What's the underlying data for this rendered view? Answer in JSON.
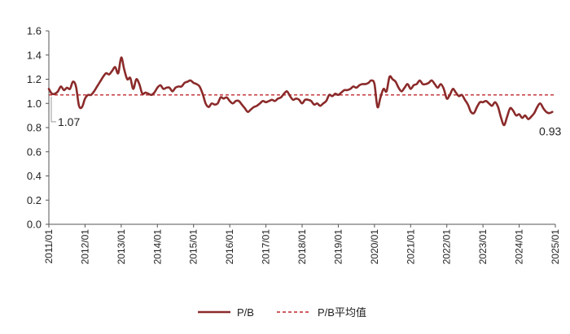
{
  "chart_data": {
    "type": "line",
    "title": "",
    "xlabel": "",
    "ylabel": "",
    "ylim": [
      0.0,
      1.6
    ],
    "y_ticks": [
      "0.0",
      "0.2",
      "0.4",
      "0.6",
      "0.8",
      "1.0",
      "1.2",
      "1.4",
      "1.6"
    ],
    "x_ticks": [
      "2011/01",
      "2012/01",
      "2013/01",
      "2014/01",
      "2015/01",
      "2016/01",
      "2017/01",
      "2018/01",
      "2019/01",
      "2020/01",
      "2021/01",
      "2022/01",
      "2023/01",
      "2024/01",
      "2025/01"
    ],
    "grid": false,
    "legend_position": "bottom",
    "series": [
      {
        "name": "P/B",
        "color": "#8B2A2A",
        "style": "solid",
        "points": [
          [
            "2011/01",
            1.12
          ],
          [
            "2011/02",
            1.08
          ],
          [
            "2011/03",
            1.08
          ],
          [
            "2011/04",
            1.1
          ],
          [
            "2011/05",
            1.14
          ],
          [
            "2011/06",
            1.11
          ],
          [
            "2011/07",
            1.13
          ],
          [
            "2011/08",
            1.12
          ],
          [
            "2011/09",
            1.18
          ],
          [
            "2011/10",
            1.14
          ],
          [
            "2011/11",
            0.98
          ],
          [
            "2011/12",
            0.97
          ],
          [
            "2012/01",
            1.04
          ],
          [
            "2012/02",
            1.07
          ],
          [
            "2012/03",
            1.07
          ],
          [
            "2012/04",
            1.1
          ],
          [
            "2012/05",
            1.14
          ],
          [
            "2012/06",
            1.18
          ],
          [
            "2012/07",
            1.22
          ],
          [
            "2012/08",
            1.25
          ],
          [
            "2012/09",
            1.24
          ],
          [
            "2012/10",
            1.27
          ],
          [
            "2012/11",
            1.3
          ],
          [
            "2012/12",
            1.25
          ],
          [
            "2013/01",
            1.38
          ],
          [
            "2013/02",
            1.28
          ],
          [
            "2013/03",
            1.2
          ],
          [
            "2013/04",
            1.21
          ],
          [
            "2013/05",
            1.12
          ],
          [
            "2013/06",
            1.2
          ],
          [
            "2013/07",
            1.16
          ],
          [
            "2013/08",
            1.08
          ],
          [
            "2013/09",
            1.09
          ],
          [
            "2013/10",
            1.08
          ],
          [
            "2013/11",
            1.07
          ],
          [
            "2013/12",
            1.09
          ],
          [
            "2014/01",
            1.13
          ],
          [
            "2014/02",
            1.15
          ],
          [
            "2014/03",
            1.12
          ],
          [
            "2014/04",
            1.13
          ],
          [
            "2014/05",
            1.13
          ],
          [
            "2014/06",
            1.1
          ],
          [
            "2014/07",
            1.13
          ],
          [
            "2014/08",
            1.14
          ],
          [
            "2014/09",
            1.14
          ],
          [
            "2014/10",
            1.17
          ],
          [
            "2014/11",
            1.18
          ],
          [
            "2014/12",
            1.19
          ],
          [
            "2015/01",
            1.17
          ],
          [
            "2015/02",
            1.16
          ],
          [
            "2015/03",
            1.14
          ],
          [
            "2015/04",
            1.08
          ],
          [
            "2015/05",
            1.0
          ],
          [
            "2015/06",
            0.97
          ],
          [
            "2015/07",
            1.0
          ],
          [
            "2015/08",
            0.99
          ],
          [
            "2015/09",
            1.0
          ],
          [
            "2015/10",
            1.05
          ],
          [
            "2015/11",
            1.04
          ],
          [
            "2015/12",
            1.05
          ],
          [
            "2016/01",
            1.02
          ],
          [
            "2016/02",
            1.0
          ],
          [
            "2016/03",
            1.02
          ],
          [
            "2016/04",
            1.02
          ],
          [
            "2016/05",
            0.99
          ],
          [
            "2016/06",
            0.96
          ],
          [
            "2016/07",
            0.93
          ],
          [
            "2016/08",
            0.95
          ],
          [
            "2016/09",
            0.97
          ],
          [
            "2016/10",
            0.98
          ],
          [
            "2016/11",
            1.0
          ],
          [
            "2016/12",
            1.02
          ],
          [
            "2017/01",
            1.01
          ],
          [
            "2017/02",
            1.02
          ],
          [
            "2017/03",
            1.03
          ],
          [
            "2017/04",
            1.02
          ],
          [
            "2017/05",
            1.04
          ],
          [
            "2017/06",
            1.05
          ],
          [
            "2017/07",
            1.08
          ],
          [
            "2017/08",
            1.1
          ],
          [
            "2017/09",
            1.06
          ],
          [
            "2017/10",
            1.03
          ],
          [
            "2017/11",
            1.04
          ],
          [
            "2017/12",
            1.03
          ],
          [
            "2018/01",
            1.0
          ],
          [
            "2018/02",
            1.03
          ],
          [
            "2018/03",
            1.03
          ],
          [
            "2018/04",
            1.02
          ],
          [
            "2018/05",
            0.99
          ],
          [
            "2018/06",
            1.0
          ],
          [
            "2018/07",
            0.98
          ],
          [
            "2018/08",
            1.0
          ],
          [
            "2018/09",
            1.02
          ],
          [
            "2018/10",
            1.07
          ],
          [
            "2018/11",
            1.06
          ],
          [
            "2018/12",
            1.08
          ],
          [
            "2019/01",
            1.07
          ],
          [
            "2019/02",
            1.09
          ],
          [
            "2019/03",
            1.11
          ],
          [
            "2019/04",
            1.11
          ],
          [
            "2019/05",
            1.12
          ],
          [
            "2019/06",
            1.14
          ],
          [
            "2019/07",
            1.13
          ],
          [
            "2019/08",
            1.15
          ],
          [
            "2019/09",
            1.16
          ],
          [
            "2019/10",
            1.16
          ],
          [
            "2019/11",
            1.17
          ],
          [
            "2019/12",
            1.19
          ],
          [
            "2020/01",
            1.16
          ],
          [
            "2020/02",
            0.97
          ],
          [
            "2020/03",
            1.05
          ],
          [
            "2020/04",
            1.12
          ],
          [
            "2020/05",
            1.1
          ],
          [
            "2020/06",
            1.22
          ],
          [
            "2020/07",
            1.2
          ],
          [
            "2020/08",
            1.18
          ],
          [
            "2020/09",
            1.13
          ],
          [
            "2020/10",
            1.1
          ],
          [
            "2020/11",
            1.13
          ],
          [
            "2020/12",
            1.16
          ],
          [
            "2021/01",
            1.12
          ],
          [
            "2021/02",
            1.15
          ],
          [
            "2021/03",
            1.16
          ],
          [
            "2021/04",
            1.19
          ],
          [
            "2021/05",
            1.16
          ],
          [
            "2021/06",
            1.16
          ],
          [
            "2021/07",
            1.17
          ],
          [
            "2021/08",
            1.19
          ],
          [
            "2021/09",
            1.16
          ],
          [
            "2021/10",
            1.13
          ],
          [
            "2021/11",
            1.16
          ],
          [
            "2021/12",
            1.12
          ],
          [
            "2022/01",
            1.04
          ],
          [
            "2022/02",
            1.07
          ],
          [
            "2022/03",
            1.12
          ],
          [
            "2022/04",
            1.09
          ],
          [
            "2022/05",
            1.06
          ],
          [
            "2022/06",
            1.07
          ],
          [
            "2022/07",
            1.03
          ],
          [
            "2022/08",
            0.99
          ],
          [
            "2022/09",
            0.93
          ],
          [
            "2022/10",
            0.92
          ],
          [
            "2022/11",
            0.97
          ],
          [
            "2022/12",
            1.01
          ],
          [
            "2023/01",
            1.01
          ],
          [
            "2023/02",
            1.02
          ],
          [
            "2023/03",
            1.0
          ],
          [
            "2023/04",
            0.98
          ],
          [
            "2023/05",
            1.01
          ],
          [
            "2023/06",
            0.97
          ],
          [
            "2023/07",
            0.88
          ],
          [
            "2023/08",
            0.82
          ],
          [
            "2023/09",
            0.89
          ],
          [
            "2023/10",
            0.96
          ],
          [
            "2023/11",
            0.94
          ],
          [
            "2023/12",
            0.9
          ],
          [
            "2024/01",
            0.91
          ],
          [
            "2024/02",
            0.88
          ],
          [
            "2024/03",
            0.9
          ],
          [
            "2024/04",
            0.87
          ],
          [
            "2024/05",
            0.89
          ],
          [
            "2024/06",
            0.92
          ],
          [
            "2024/07",
            0.97
          ],
          [
            "2024/08",
            1.0
          ],
          [
            "2024/09",
            0.96
          ],
          [
            "2024/10",
            0.93
          ],
          [
            "2024/11",
            0.92
          ],
          [
            "2024/12",
            0.93
          ]
        ]
      },
      {
        "name": "P/B平均值",
        "color": "#C0272D",
        "style": "dashed",
        "value": 1.07
      }
    ],
    "annotations": [
      {
        "text": "1.07",
        "x": "2011/01",
        "y": 1.07
      },
      {
        "text": "0.93",
        "x": "2024/12",
        "y": 0.93
      }
    ]
  }
}
